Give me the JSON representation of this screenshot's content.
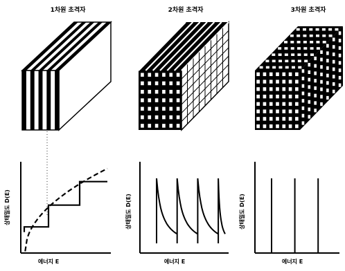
{
  "columns": [
    {
      "title": "1차원 초격자",
      "structure": "stripes",
      "graph": {
        "type": "staircase",
        "ylabel": "상태밀도 D(E)",
        "xlabel": "에너지 E",
        "steps": [
          [
            0.0,
            0.0
          ],
          [
            0.08,
            0.3
          ],
          [
            0.32,
            0.55
          ],
          [
            0.68,
            0.82
          ],
          [
            1.0,
            0.82
          ]
        ],
        "parabola": true
      }
    },
    {
      "title": "2차원 초격자",
      "structure": "grid",
      "graph": {
        "type": "sawtooth",
        "ylabel": "상태밀도 D(E)",
        "xlabel": "에너지 E",
        "peaks": [
          0.0,
          0.3,
          0.6,
          0.9
        ]
      }
    },
    {
      "title": "3차원 초격자",
      "structure": "dots",
      "graph": {
        "type": "delta",
        "ylabel": "상태밀도 D(E)",
        "xlabel": "에너지 E",
        "peaks": [
          0.2,
          0.48,
          0.76
        ]
      }
    }
  ],
  "colors": {
    "ink": "#000000",
    "paper": "#ffffff"
  }
}
